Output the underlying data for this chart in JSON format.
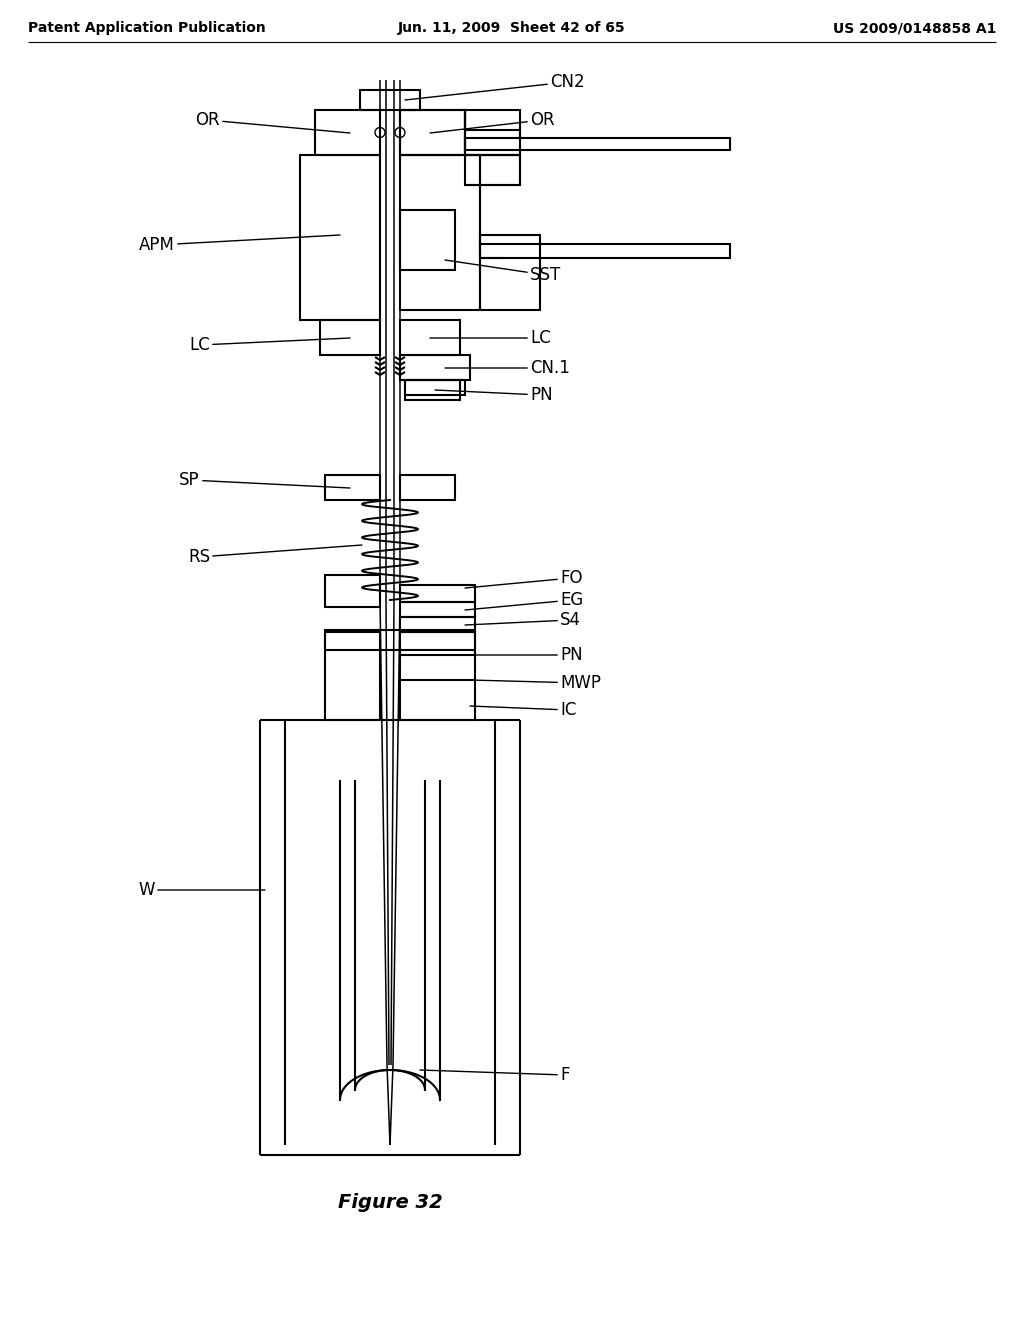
{
  "title_left": "Patent Application Publication",
  "title_mid": "Jun. 11, 2009  Sheet 42 of 65",
  "title_right": "US 2009/0148858 A1",
  "figure_caption": "Figure 32",
  "bg_color": "#ffffff",
  "line_color": "#000000",
  "font_size_header": 10,
  "font_size_label": 12,
  "font_size_caption": 14
}
